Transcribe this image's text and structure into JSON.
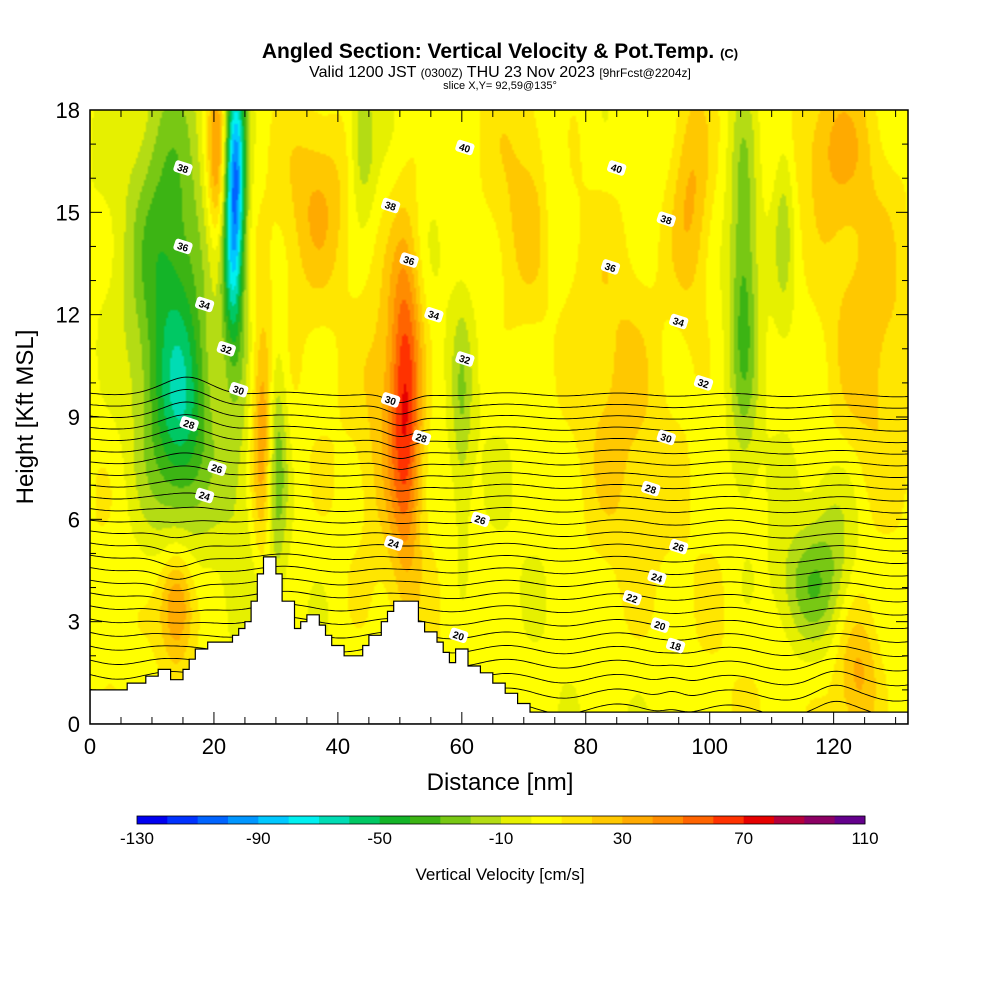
{
  "title": {
    "main": "Angled Section: Vertical Velocity & Pot.Temp.",
    "main_unit": "(C)",
    "valid_prefix": "Valid 1200 JST",
    "valid_z": "(0300Z)",
    "valid_date": "THU 23 Nov 2023",
    "valid_fcst": "[9hrFcst@2204z]",
    "slice": "slice X,Y= 92,59@135°"
  },
  "chart_data": {
    "type": "heatmap",
    "xlabel": "Distance [nm]",
    "ylabel": "Height [Kft MSL]",
    "xlim": [
      0,
      132
    ],
    "ylim": [
      0,
      18
    ],
    "xticks": [
      0,
      20,
      40,
      60,
      80,
      100,
      120
    ],
    "yticks": [
      0,
      3,
      6,
      9,
      12,
      15,
      18
    ],
    "colorbar": {
      "label": "Vertical Velocity [cm/s]",
      "min": -130,
      "max": 110,
      "step": 10,
      "ticks": [
        -130,
        -90,
        -50,
        -10,
        30,
        70,
        110
      ],
      "colors": [
        "#0000f0",
        "#0032ff",
        "#0064ff",
        "#0096ff",
        "#00c8ff",
        "#00f0f0",
        "#00dcb4",
        "#00c864",
        "#14b428",
        "#3cb414",
        "#78c814",
        "#b4dc14",
        "#e6f000",
        "#ffff00",
        "#ffe600",
        "#ffc800",
        "#ffaa00",
        "#ff8c00",
        "#ff6400",
        "#ff3200",
        "#e60000",
        "#b4003c",
        "#8c0064",
        "#64008c"
      ]
    },
    "terrain": [
      [
        0,
        1.0
      ],
      [
        6,
        1.0
      ],
      [
        6,
        1.2
      ],
      [
        9,
        1.2
      ],
      [
        9,
        1.4
      ],
      [
        11,
        1.4
      ],
      [
        11,
        1.6
      ],
      [
        13,
        1.6
      ],
      [
        13,
        1.3
      ],
      [
        15,
        1.3
      ],
      [
        15,
        1.6
      ],
      [
        16,
        1.6
      ],
      [
        16,
        1.9
      ],
      [
        17,
        1.9
      ],
      [
        17,
        2.2
      ],
      [
        19,
        2.2
      ],
      [
        19,
        2.4
      ],
      [
        23,
        2.4
      ],
      [
        23,
        2.6
      ],
      [
        24,
        2.6
      ],
      [
        24,
        2.8
      ],
      [
        25,
        2.8
      ],
      [
        25,
        3.0
      ],
      [
        26,
        3.0
      ],
      [
        26,
        3.6
      ],
      [
        27,
        3.6
      ],
      [
        27,
        4.4
      ],
      [
        28,
        4.4
      ],
      [
        28,
        4.9
      ],
      [
        30,
        4.9
      ],
      [
        30,
        4.4
      ],
      [
        31,
        4.4
      ],
      [
        31,
        3.6
      ],
      [
        33,
        3.6
      ],
      [
        33,
        2.8
      ],
      [
        34,
        2.8
      ],
      [
        34,
        3.0
      ],
      [
        35,
        3.0
      ],
      [
        35,
        3.2
      ],
      [
        37,
        3.2
      ],
      [
        37,
        2.9
      ],
      [
        38,
        2.9
      ],
      [
        38,
        2.6
      ],
      [
        39,
        2.6
      ],
      [
        39,
        2.3
      ],
      [
        41,
        2.3
      ],
      [
        41,
        2.0
      ],
      [
        44,
        2.0
      ],
      [
        44,
        2.3
      ],
      [
        45,
        2.3
      ],
      [
        45,
        2.6
      ],
      [
        47,
        2.6
      ],
      [
        47,
        3.0
      ],
      [
        48,
        3.0
      ],
      [
        48,
        3.3
      ],
      [
        49,
        3.3
      ],
      [
        49,
        3.6
      ],
      [
        53,
        3.6
      ],
      [
        53,
        3.0
      ],
      [
        54,
        3.0
      ],
      [
        54,
        2.7
      ],
      [
        56,
        2.7
      ],
      [
        56,
        2.4
      ],
      [
        57,
        2.4
      ],
      [
        57,
        2.1
      ],
      [
        58,
        2.1
      ],
      [
        58,
        1.8
      ],
      [
        59,
        1.8
      ],
      [
        59,
        2.2
      ],
      [
        61,
        2.2
      ],
      [
        61,
        1.7
      ],
      [
        63,
        1.7
      ],
      [
        63,
        1.5
      ],
      [
        65,
        1.5
      ],
      [
        65,
        1.2
      ],
      [
        67,
        1.2
      ],
      [
        67,
        0.9
      ],
      [
        69,
        0.9
      ],
      [
        69,
        0.6
      ],
      [
        71,
        0.6
      ],
      [
        71,
        0.35
      ],
      [
        132,
        0.35
      ],
      [
        132,
        0
      ]
    ],
    "theta_levels": [
      15,
      16,
      17,
      18,
      19,
      20,
      21,
      22,
      23,
      24,
      25,
      26,
      27,
      28,
      29,
      30,
      31,
      32,
      33,
      34,
      35,
      36,
      37,
      38,
      39,
      40,
      41
    ],
    "theta_labels": [
      {
        "text": "38",
        "x": 15,
        "y": 16.3
      },
      {
        "text": "36",
        "x": 15,
        "y": 14.0
      },
      {
        "text": "34",
        "x": 18.5,
        "y": 12.3
      },
      {
        "text": "32",
        "x": 22,
        "y": 11.0
      },
      {
        "text": "30",
        "x": 24,
        "y": 9.8
      },
      {
        "text": "28",
        "x": 16,
        "y": 8.8
      },
      {
        "text": "26",
        "x": 20.5,
        "y": 7.5
      },
      {
        "text": "24",
        "x": 18.5,
        "y": 6.7
      },
      {
        "text": "40",
        "x": 60.5,
        "y": 16.9
      },
      {
        "text": "38",
        "x": 48.5,
        "y": 15.2
      },
      {
        "text": "36",
        "x": 51.5,
        "y": 13.6
      },
      {
        "text": "34",
        "x": 55.5,
        "y": 12.0
      },
      {
        "text": "32",
        "x": 60.5,
        "y": 10.7
      },
      {
        "text": "30",
        "x": 48.5,
        "y": 9.5
      },
      {
        "text": "28",
        "x": 53.5,
        "y": 8.4
      },
      {
        "text": "26",
        "x": 63,
        "y": 6.0
      },
      {
        "text": "24",
        "x": 49,
        "y": 5.3
      },
      {
        "text": "20",
        "x": 59.5,
        "y": 2.6
      },
      {
        "text": "40",
        "x": 85,
        "y": 16.3
      },
      {
        "text": "38",
        "x": 93,
        "y": 14.8
      },
      {
        "text": "36",
        "x": 84,
        "y": 13.4
      },
      {
        "text": "34",
        "x": 95,
        "y": 11.8
      },
      {
        "text": "32",
        "x": 99,
        "y": 10.0
      },
      {
        "text": "30",
        "x": 93,
        "y": 8.4
      },
      {
        "text": "28",
        "x": 90.5,
        "y": 6.9
      },
      {
        "text": "26",
        "x": 95,
        "y": 5.2
      },
      {
        "text": "24",
        "x": 91.5,
        "y": 4.3
      },
      {
        "text": "22",
        "x": 87.5,
        "y": 3.7
      },
      {
        "text": "20",
        "x": 92,
        "y": 2.9
      },
      {
        "text": "18",
        "x": 94.5,
        "y": 2.3
      }
    ],
    "w_features": [
      {
        "x": 13,
        "y": 13,
        "sx": 4.5,
        "sy": 5,
        "w": -45
      },
      {
        "x": 15,
        "y": 9,
        "sx": 3,
        "sy": 2,
        "w": -30
      },
      {
        "x": 23.5,
        "y": 16.5,
        "sx": 1.2,
        "sy": 2.2,
        "w": -90
      },
      {
        "x": 23,
        "y": 13.5,
        "sx": 1.2,
        "sy": 2,
        "w": -50
      },
      {
        "x": 20.5,
        "y": 16.5,
        "sx": 1.2,
        "sy": 2,
        "w": 40
      },
      {
        "x": 24.5,
        "y": 9,
        "sx": 2.5,
        "sy": 4,
        "w": -15
      },
      {
        "x": 28,
        "y": 8.5,
        "sx": 1.5,
        "sy": 2.5,
        "w": 45
      },
      {
        "x": 30,
        "y": 8,
        "sx": 1.2,
        "sy": 2.5,
        "w": -40
      },
      {
        "x": 14,
        "y": 3.5,
        "sx": 2,
        "sy": 1.2,
        "w": 45
      },
      {
        "x": 37,
        "y": 15.5,
        "sx": 4,
        "sy": 2,
        "w": 25
      },
      {
        "x": 44,
        "y": 17,
        "sx": 1.5,
        "sy": 1.5,
        "w": -25
      },
      {
        "x": 51,
        "y": 9.5,
        "sx": 1.8,
        "sy": 3.5,
        "w": 55
      },
      {
        "x": 48,
        "y": 10,
        "sx": 3,
        "sy": 3,
        "w": 20
      },
      {
        "x": 60,
        "y": 9,
        "sx": 1.2,
        "sy": 2.5,
        "w": -20
      },
      {
        "x": 70,
        "y": 15,
        "sx": 4,
        "sy": 2.5,
        "w": 15
      },
      {
        "x": 75,
        "y": 16,
        "sx": 1.5,
        "sy": 2.5,
        "w": -15
      },
      {
        "x": 97,
        "y": 15.5,
        "sx": 2.5,
        "sy": 2.5,
        "w": 30
      },
      {
        "x": 105.5,
        "y": 13,
        "sx": 1.6,
        "sy": 4,
        "w": -35
      },
      {
        "x": 112,
        "y": 15,
        "sx": 1.2,
        "sy": 2.5,
        "w": -18
      },
      {
        "x": 116,
        "y": 4,
        "sx": 4,
        "sy": 1.2,
        "w": -28
      },
      {
        "x": 120,
        "y": 6,
        "sx": 3,
        "sy": 1.5,
        "w": -15
      },
      {
        "x": 124,
        "y": 1.3,
        "sx": 2.5,
        "sy": 1.5,
        "w": 30
      },
      {
        "x": 85,
        "y": 9,
        "sx": 5,
        "sy": 4,
        "w": 15
      },
      {
        "x": 125,
        "y": 11,
        "sx": 5,
        "sy": 4,
        "w": 18
      },
      {
        "x": 120,
        "y": 17,
        "sx": 4,
        "sy": 1.5,
        "w": 20
      }
    ]
  }
}
